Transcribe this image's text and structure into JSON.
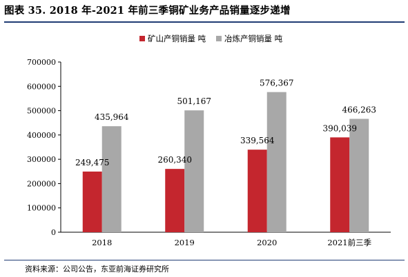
{
  "figure_title": "图表 35. 2018 年-2021 年前三季铜矿业务产品销量逐步递增",
  "source_text": "资料来源：公司公告，东亚前海证券研究所",
  "colors": {
    "series_0": "#c4262e",
    "series_1": "#a8a8a8",
    "rule": "#1f3b73"
  },
  "chart_data": {
    "type": "bar",
    "title": "",
    "xlabel": "",
    "ylabel": "",
    "categories": [
      "2018",
      "2019",
      "2020",
      "2021前三季"
    ],
    "series": [
      {
        "name": "矿山产铜销量 吨",
        "values": [
          249475,
          260340,
          339564,
          390039
        ],
        "labels": [
          "249,475",
          "260,340",
          "339,564",
          "390,039"
        ]
      },
      {
        "name": "冶炼产铜销量 吨",
        "values": [
          435964,
          501167,
          576367,
          466263
        ],
        "labels": [
          "435,964",
          "501,167",
          "576,367",
          "466,263"
        ]
      }
    ],
    "ylim": [
      0,
      700000
    ],
    "yticks": [
      0,
      100000,
      200000,
      300000,
      400000,
      500000,
      600000,
      700000
    ],
    "ytick_labels": [
      "0",
      "100000",
      "200000",
      "300000",
      "400000",
      "500000",
      "600000",
      "700000"
    ],
    "grid": false,
    "legend_position": "top-center"
  }
}
